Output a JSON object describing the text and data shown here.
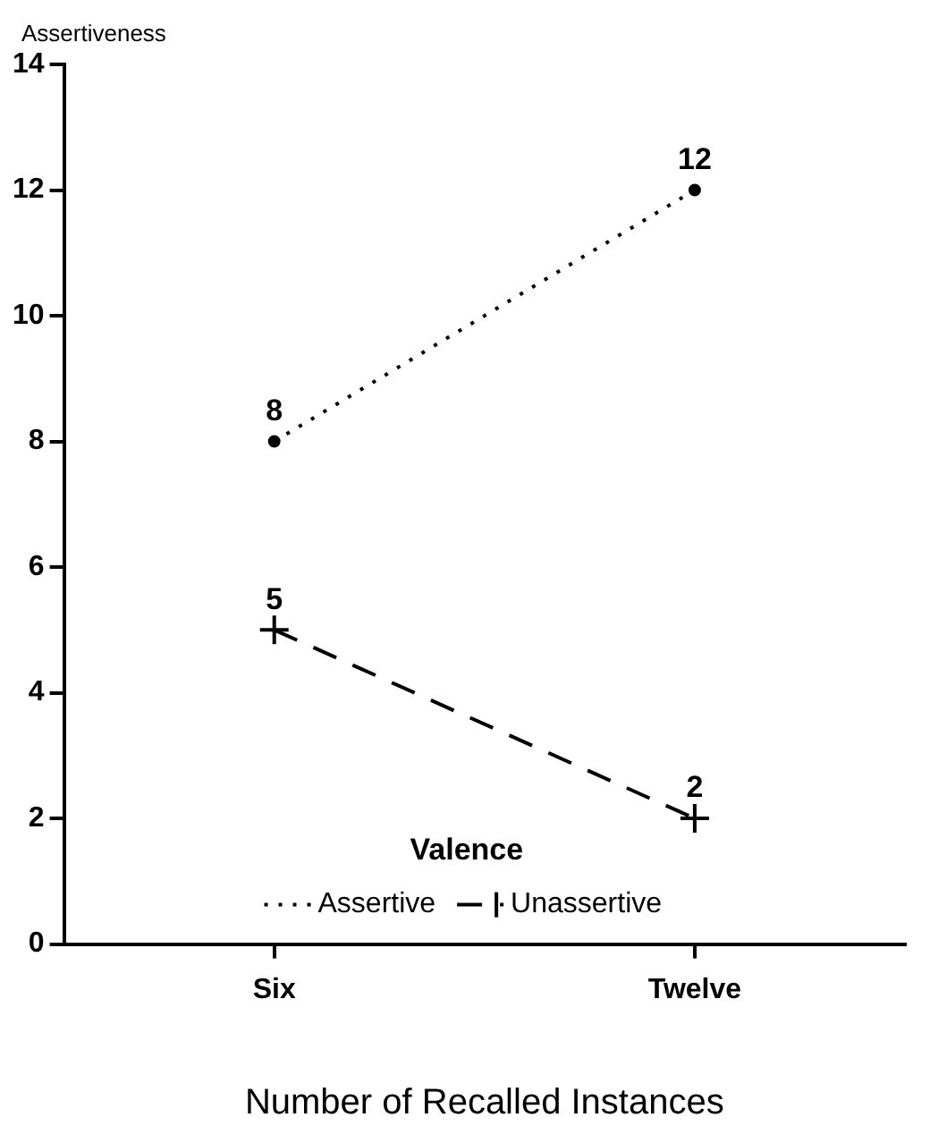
{
  "chart_data": {
    "type": "line",
    "xlabel": "Number of Recalled Instances",
    "ylabel": "Assertiveness",
    "legend_title": "Valence",
    "categories": [
      "Six",
      "Twelve"
    ],
    "series": [
      {
        "name": "Assertive",
        "color": "#000000",
        "values": [
          8,
          12
        ],
        "marker": "circle",
        "line_style": "dotted"
      },
      {
        "name": "Unassertive",
        "color": "#000000",
        "values": [
          5,
          2
        ],
        "marker": "cross",
        "line_style": "dashed"
      }
    ],
    "ylim": [
      0,
      14
    ],
    "yticks": [
      0,
      2,
      4,
      6,
      8,
      10,
      12,
      14
    ],
    "grid": false,
    "legend": "bottom",
    "data_labels": true
  }
}
